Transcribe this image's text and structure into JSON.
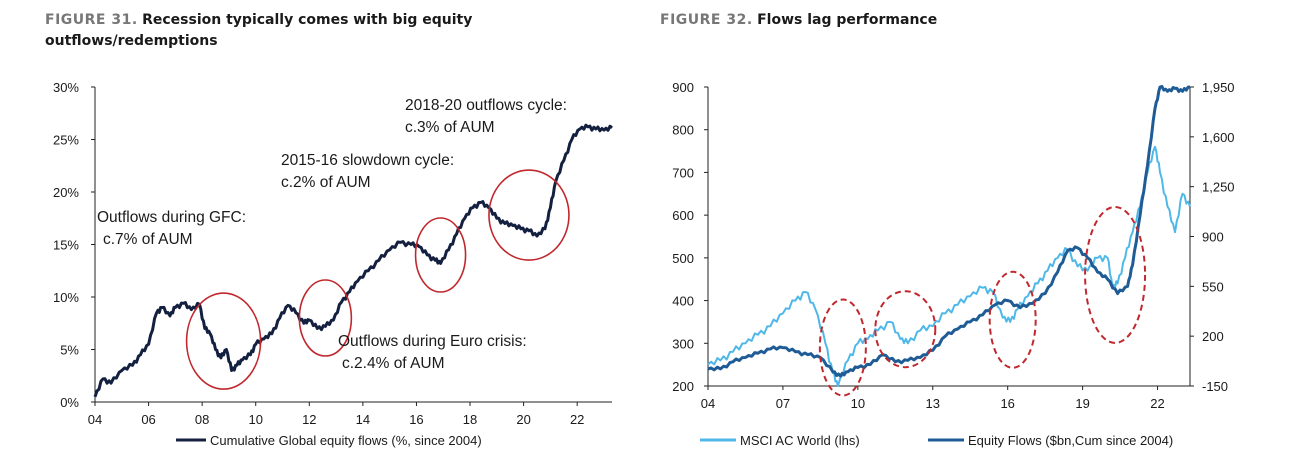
{
  "chart_data": [
    {
      "type": "line",
      "figure_label": "FIGURE 31.",
      "title": "Recession typically comes with big equity outflows/redemptions",
      "x_ticks": [
        "04",
        "06",
        "08",
        "10",
        "12",
        "14",
        "16",
        "18",
        "20",
        "22"
      ],
      "x_range": [
        2004,
        2023.3
      ],
      "y_ticks": [
        "0%",
        "5%",
        "10%",
        "15%",
        "20%",
        "25%",
        "30%"
      ],
      "ylim": [
        0,
        30
      ],
      "series": [
        {
          "name": "Cumulative Global equity flows (%, since 2004)",
          "color": "#14203f",
          "x": [
            2004.0,
            2004.3,
            2004.6,
            2005.0,
            2005.4,
            2005.7,
            2006.0,
            2006.3,
            2006.5,
            2006.8,
            2007.0,
            2007.3,
            2007.6,
            2007.9,
            2008.1,
            2008.3,
            2008.5,
            2008.7,
            2008.9,
            2009.1,
            2009.3,
            2009.5,
            2009.8,
            2010.0,
            2010.3,
            2010.6,
            2010.9,
            2011.2,
            2011.5,
            2011.8,
            2012.0,
            2012.3,
            2012.6,
            2012.9,
            2013.2,
            2013.5,
            2013.8,
            2014.2,
            2014.6,
            2015.0,
            2015.4,
            2015.8,
            2016.1,
            2016.4,
            2016.7,
            2016.9,
            2017.2,
            2017.5,
            2017.8,
            2018.1,
            2018.4,
            2018.7,
            2019.0,
            2019.3,
            2019.6,
            2019.9,
            2020.2,
            2020.5,
            2020.8,
            2021.0,
            2021.2,
            2021.5,
            2021.8,
            2022.1,
            2022.4,
            2022.7,
            2023.0,
            2023.3
          ],
          "y": [
            0.5,
            2.2,
            1.8,
            3.0,
            3.5,
            4.5,
            5.5,
            8.5,
            9.0,
            8.2,
            9.0,
            9.4,
            8.8,
            9.3,
            7.0,
            6.5,
            5.0,
            4.2,
            5.0,
            3.0,
            3.5,
            4.0,
            4.5,
            5.5,
            6.0,
            6.5,
            8.0,
            9.2,
            8.5,
            7.5,
            7.8,
            7.0,
            7.2,
            7.8,
            9.5,
            10.5,
            11.5,
            12.5,
            13.5,
            14.5,
            15.2,
            15.0,
            14.8,
            14.0,
            13.5,
            13.2,
            14.5,
            16.0,
            17.5,
            18.5,
            19.0,
            18.5,
            17.5,
            17.0,
            16.8,
            16.5,
            16.3,
            15.8,
            16.5,
            18.5,
            21.0,
            23.0,
            25.0,
            26.0,
            26.2,
            26.0,
            25.9,
            26.1
          ]
        }
      ],
      "annotations": [
        {
          "lines": [
            "2018-20 outflows cycle:",
            "c.3% of AUM"
          ]
        },
        {
          "lines": [
            "2015-16 slowdown cycle:",
            "c.2% of AUM"
          ]
        },
        {
          "lines": [
            "Outflows during GFC:",
            "c.7% of AUM"
          ]
        },
        {
          "lines": [
            "Outflows during Euro crisis:",
            "c.2.4% of AUM"
          ]
        }
      ],
      "highlight_color": "#c0282e",
      "grid": false
    },
    {
      "type": "line",
      "figure_label": "FIGURE 32.",
      "title": "Flows lag performance",
      "x_ticks": [
        "04",
        "07",
        "10",
        "13",
        "16",
        "19",
        "22"
      ],
      "x_range": [
        2004,
        2023.3
      ],
      "y_ticks_left": [
        "200",
        "300",
        "400",
        "500",
        "600",
        "700",
        "800",
        "900"
      ],
      "ylim_left": [
        200,
        900
      ],
      "y_ticks_right": [
        "-150",
        "200",
        "550",
        "900",
        "1,250",
        "1,600",
        "1,950"
      ],
      "ylim_right": [
        -150,
        1950
      ],
      "series": [
        {
          "name": "MSCI AC World (lhs)",
          "axis": "left",
          "color": "#4fb8e8",
          "x": [
            2004.0,
            2004.5,
            2005.0,
            2005.5,
            2006.0,
            2006.5,
            2007.0,
            2007.5,
            2007.9,
            2008.3,
            2008.7,
            2009.0,
            2009.2,
            2009.6,
            2010.0,
            2010.4,
            2010.8,
            2011.3,
            2011.7,
            2012.0,
            2012.5,
            2013.0,
            2013.5,
            2014.0,
            2014.5,
            2015.0,
            2015.4,
            2015.8,
            2016.1,
            2016.4,
            2016.8,
            2017.2,
            2017.6,
            2018.0,
            2018.4,
            2018.8,
            2019.2,
            2019.6,
            2020.0,
            2020.2,
            2020.4,
            2020.7,
            2021.0,
            2021.3,
            2021.6,
            2021.9,
            2022.1,
            2022.4,
            2022.7,
            2023.0,
            2023.3
          ],
          "y": [
            250,
            260,
            280,
            300,
            320,
            340,
            370,
            400,
            420,
            380,
            300,
            230,
            200,
            260,
            300,
            310,
            330,
            350,
            310,
            300,
            330,
            340,
            370,
            390,
            410,
            430,
            420,
            360,
            350,
            380,
            410,
            440,
            470,
            500,
            520,
            480,
            470,
            500,
            500,
            430,
            440,
            500,
            560,
            620,
            700,
            760,
            700,
            620,
            560,
            650,
            620
          ]
        },
        {
          "name": "Equity Flows ($bn,Cum since 2004)",
          "axis": "right",
          "color": "#1f5c96",
          "x": [
            2004.0,
            2004.5,
            2005.0,
            2005.5,
            2006.0,
            2006.5,
            2007.0,
            2007.5,
            2008.0,
            2008.5,
            2009.0,
            2009.3,
            2009.6,
            2010.0,
            2010.5,
            2011.0,
            2011.5,
            2012.0,
            2012.5,
            2013.0,
            2013.5,
            2014.0,
            2014.5,
            2015.0,
            2015.5,
            2016.0,
            2016.5,
            2017.0,
            2017.5,
            2018.0,
            2018.4,
            2018.8,
            2019.2,
            2019.6,
            2020.0,
            2020.4,
            2020.8,
            2021.0,
            2021.3,
            2021.6,
            2021.9,
            2022.1,
            2022.4,
            2022.7,
            2023.0,
            2023.3
          ],
          "y": [
            -30,
            -30,
            20,
            50,
            80,
            110,
            120,
            90,
            70,
            50,
            -50,
            -80,
            -50,
            -20,
            0,
            70,
            20,
            30,
            50,
            100,
            200,
            250,
            300,
            350,
            420,
            450,
            400,
            430,
            500,
            650,
            800,
            820,
            750,
            650,
            600,
            500,
            550,
            700,
            1050,
            1400,
            1800,
            1950,
            1920,
            1940,
            1920,
            1950
          ]
        }
      ],
      "highlight_color": "#c0282e",
      "grid": false
    }
  ]
}
